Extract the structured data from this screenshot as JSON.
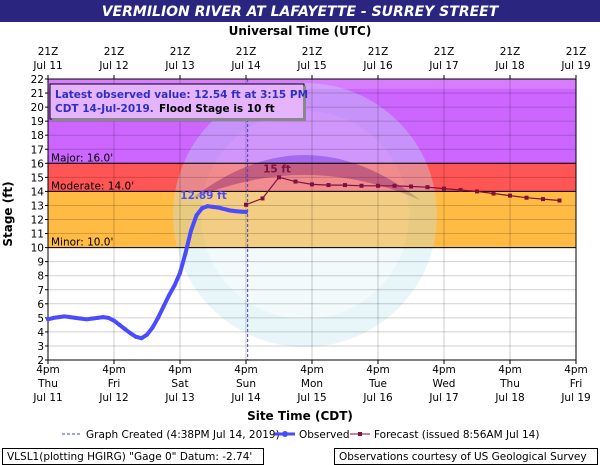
{
  "header": {
    "title": "VERMILION RIVER AT LAFAYETTE - SURREY STREET",
    "top_axis_label": "Universal Time (UTC)"
  },
  "info_box": {
    "line1": "Latest observed value: 12.54 ft at 3:15 PM",
    "line2a": "CDT 14-Jul-2019.",
    "line2b": "Flood Stage is 10 ft"
  },
  "legend": {
    "graph_created": "Graph Created (4:38PM Jul 14, 2019)",
    "observed": "Observed",
    "forecast": "Forecast (issued 8:56AM Jul 14)"
  },
  "footer": {
    "left": "VLSL1(plotting HGIRG) \"Gage 0\" Datum: -2.74'",
    "right": "Observations courtesy of US Geological Survey"
  },
  "colors": {
    "title_bg": "#2a2680",
    "title_text": "#ffffff",
    "band_major": "#cc66ff",
    "band_major_top": "#dd88ff",
    "band_moderate": "#ff5555",
    "band_minor": "#ffbb44",
    "observed": "#4a4aff",
    "forecast": "#801040",
    "info_text": "#3030c0"
  },
  "chart_data": {
    "type": "line",
    "title": "VERMILION RIVER AT LAFAYETTE - SURREY STREET",
    "xlabel": "Site Time (CDT)",
    "ylabel": "Stage (ft)",
    "x_unit": "hours after 4pm Thu Jul 11 (CDT)",
    "ylim": [
      2,
      22
    ],
    "y_ticks": [
      2,
      3,
      4,
      5,
      6,
      7,
      8,
      9,
      10,
      11,
      12,
      13,
      14,
      15,
      16,
      17,
      18,
      19,
      20,
      21,
      22
    ],
    "x_ticks_bottom": [
      {
        "time": "4pm",
        "day": "Thu",
        "date": "Jul 11"
      },
      {
        "time": "4pm",
        "day": "Fri",
        "date": "Jul 12"
      },
      {
        "time": "4pm",
        "day": "Sat",
        "date": "Jul 13"
      },
      {
        "time": "4pm",
        "day": "Sun",
        "date": "Jul 14"
      },
      {
        "time": "4pm",
        "day": "Mon",
        "date": "Jul 15"
      },
      {
        "time": "4pm",
        "day": "Tue",
        "date": "Jul 16"
      },
      {
        "time": "4pm",
        "day": "Wed",
        "date": "Jul 17"
      },
      {
        "time": "4pm",
        "day": "Thu",
        "date": "Jul 18"
      },
      {
        "time": "4pm",
        "day": "Fri",
        "date": "Jul 19"
      }
    ],
    "x_ticks_top": [
      {
        "time": "21Z",
        "date": "Jul 11"
      },
      {
        "time": "21Z",
        "date": "Jul 12"
      },
      {
        "time": "21Z",
        "date": "Jul 13"
      },
      {
        "time": "21Z",
        "date": "Jul 14"
      },
      {
        "time": "21Z",
        "date": "Jul 15"
      },
      {
        "time": "21Z",
        "date": "Jul 16"
      },
      {
        "time": "21Z",
        "date": "Jul 17"
      },
      {
        "time": "21Z",
        "date": "Jul 18"
      },
      {
        "time": "21Z",
        "date": "Jul 19"
      }
    ],
    "flood_stages": [
      {
        "name": "Major",
        "label": "Major: 16.0'",
        "value": 16.0
      },
      {
        "name": "Moderate",
        "label": "Moderate: 14.0'",
        "value": 14.0
      },
      {
        "name": "Minor",
        "label": "Minor: 10.0'",
        "value": 10.0
      }
    ],
    "graph_created_hours": 72.6,
    "observed": {
      "name": "Observed",
      "x": [
        0,
        2,
        4,
        6,
        8,
        10,
        12,
        14,
        16,
        18,
        20,
        22,
        24,
        26,
        28,
        30,
        32,
        34,
        36,
        38,
        40,
        42,
        44,
        46,
        48,
        50,
        52,
        54,
        56,
        58,
        60,
        62,
        63,
        64,
        65,
        66,
        67,
        68,
        69,
        70,
        71,
        72
      ],
      "y": [
        4.9,
        5.0,
        5.05,
        5.1,
        5.05,
        5.0,
        4.95,
        4.9,
        4.95,
        5.0,
        5.05,
        5.0,
        4.8,
        4.5,
        4.2,
        3.9,
        3.65,
        3.55,
        3.8,
        4.3,
        5.0,
        5.8,
        6.6,
        7.3,
        8.2,
        9.6,
        11.2,
        12.3,
        12.8,
        12.95,
        12.9,
        12.85,
        12.8,
        12.75,
        12.7,
        12.65,
        12.62,
        12.6,
        12.58,
        12.56,
        12.55,
        12.54
      ]
    },
    "observed_label": "12.89 ft",
    "forecast": {
      "name": "Forecast",
      "x": [
        72,
        78,
        84,
        90,
        96,
        102,
        108,
        114,
        120,
        126,
        132,
        138,
        144,
        150,
        156,
        162,
        168,
        174,
        180,
        186
      ],
      "y": [
        13.05,
        13.5,
        15.0,
        14.7,
        14.5,
        14.45,
        14.45,
        14.4,
        14.4,
        14.4,
        14.35,
        14.3,
        14.2,
        14.1,
        14.0,
        13.85,
        13.7,
        13.55,
        13.45,
        13.35
      ]
    },
    "forecast_label": "15 ft"
  }
}
